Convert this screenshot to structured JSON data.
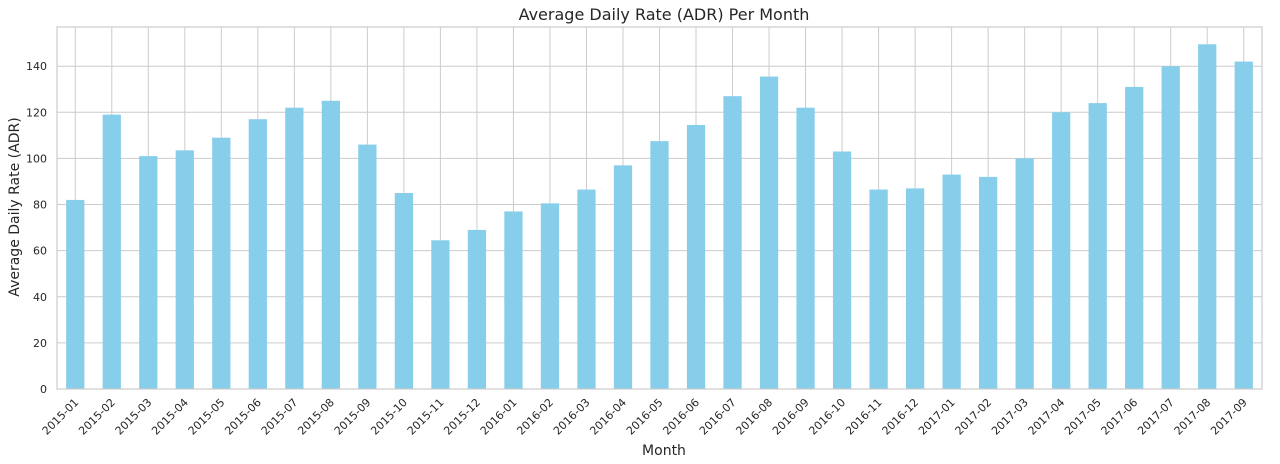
{
  "chart_data": {
    "type": "bar",
    "title": "Average Daily Rate (ADR) Per Month",
    "xlabel": "Month",
    "ylabel": "Average Daily Rate (ADR)",
    "categories": [
      "2015-01",
      "2015-02",
      "2015-03",
      "2015-04",
      "2015-05",
      "2015-06",
      "2015-07",
      "2015-08",
      "2015-09",
      "2015-10",
      "2015-11",
      "2015-12",
      "2016-01",
      "2016-02",
      "2016-03",
      "2016-04",
      "2016-05",
      "2016-06",
      "2016-07",
      "2016-08",
      "2016-09",
      "2016-10",
      "2016-11",
      "2016-12",
      "2017-01",
      "2017-02",
      "2017-03",
      "2017-04",
      "2017-05",
      "2017-06",
      "2017-07",
      "2017-08",
      "2017-09"
    ],
    "values": [
      82,
      119,
      101,
      103.5,
      109,
      117,
      122,
      125,
      106,
      85,
      64.5,
      69,
      77,
      80.5,
      86.5,
      97,
      107.5,
      114.5,
      127,
      135.5,
      122,
      103,
      86.5,
      87,
      93,
      92,
      100,
      120,
      124,
      131,
      140,
      149.5,
      142
    ],
    "ylim": [
      0,
      157
    ],
    "yticks": [
      0,
      20,
      40,
      60,
      80,
      100,
      120,
      140
    ],
    "grid": true,
    "colors": {
      "bar": "#87ceeb",
      "grid": "#cccccc",
      "axis": "#cccccc",
      "text": "#262626"
    }
  }
}
